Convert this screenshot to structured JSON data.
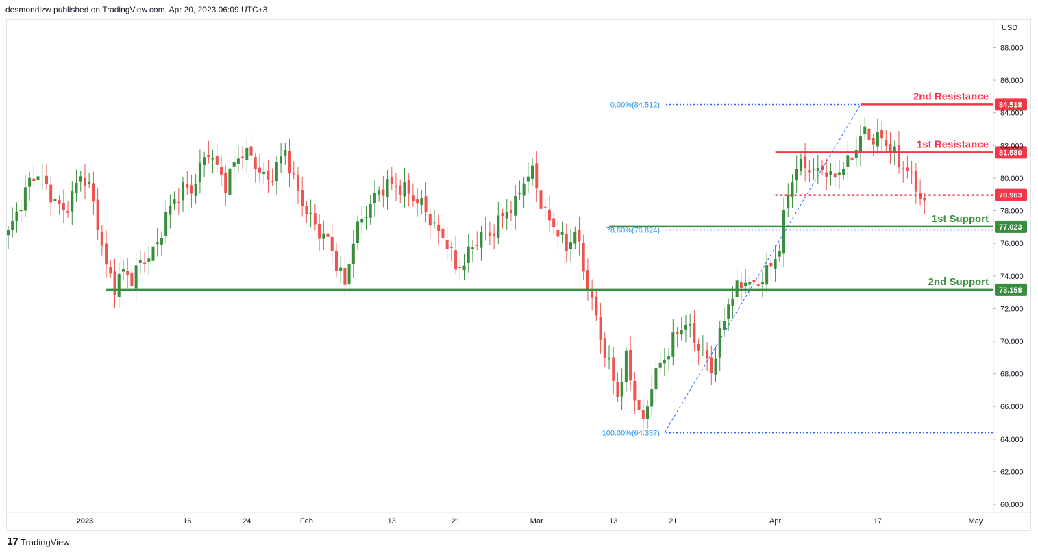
{
  "header": {
    "text": "desmondlzw published on TradingView.com, Apr 20, 2023 06:09 UTC+3"
  },
  "footer": {
    "brand": "TradingView",
    "logo_icon": "tradingview-logo-icon"
  },
  "colors": {
    "up": "#26a69a",
    "up_body": "#388e3c",
    "down": "#ef5350",
    "resistance": "#f23645",
    "support": "#388e3c",
    "fib": "#2962ff",
    "fib_text": "#2196f3"
  },
  "chart_data": {
    "type": "candlestick",
    "currency_label": "USD",
    "ylim": [
      59.5,
      89.7
    ],
    "y_ticks": [
      "88.000",
      "86.000",
      "84.000",
      "82.000",
      "80.000",
      "78.000",
      "76.000",
      "74.000",
      "72.000",
      "70.000",
      "68.000",
      "66.000",
      "64.000",
      "62.000",
      "60.000"
    ],
    "x_ticks": [
      "2023",
      "16",
      "24",
      "Feb",
      "13",
      "21",
      "Mar",
      "13",
      "21",
      "Apr",
      "17",
      "May"
    ],
    "levels": [
      {
        "label": "2nd Resistance",
        "value": 84.518,
        "badge": "84.518",
        "kind": "resistance",
        "style": "solid"
      },
      {
        "label": "1st Resistance",
        "value": 81.58,
        "badge": "81.580",
        "kind": "resistance",
        "style": "solid"
      },
      {
        "label": "",
        "value": 78.963,
        "badge": "78.963",
        "kind": "resistance",
        "style": "dotted"
      },
      {
        "label": "1st Support",
        "value": 77.023,
        "badge": "77.023",
        "kind": "support",
        "style": "solid"
      },
      {
        "label": "2nd Support",
        "value": 73.158,
        "badge": "73.158",
        "kind": "support",
        "style": "solid"
      }
    ],
    "fibonacci": [
      {
        "label": "0.00%(84.512)",
        "value": 84.512
      },
      {
        "label": "78.60%(76.824)",
        "value": 76.824
      },
      {
        "label": "100.00%(64.387)",
        "value": 64.387
      }
    ],
    "last_price": 78.3,
    "close_path": [
      [
        0,
        76.6
      ],
      [
        3,
        78.5
      ],
      [
        5,
        79.8
      ],
      [
        7,
        80.3
      ],
      [
        9,
        79.4
      ],
      [
        11,
        78.6
      ],
      [
        13,
        77.9
      ],
      [
        15,
        78.9
      ],
      [
        17,
        80.2
      ],
      [
        19,
        79.5
      ],
      [
        21,
        77.2
      ],
      [
        23,
        74.5
      ],
      [
        25,
        73.4
      ],
      [
        27,
        74.3
      ],
      [
        29,
        73.8
      ],
      [
        31,
        74.8
      ],
      [
        33,
        75.2
      ],
      [
        35,
        75.9
      ],
      [
        37,
        77.7
      ],
      [
        39,
        78.6
      ],
      [
        41,
        79.4
      ],
      [
        43,
        79.2
      ],
      [
        45,
        80.6
      ],
      [
        47,
        81.7
      ],
      [
        49,
        80.6
      ],
      [
        51,
        79.6
      ],
      [
        53,
        80.9
      ],
      [
        55,
        81.6
      ],
      [
        57,
        81.3
      ],
      [
        59,
        80.4
      ],
      [
        61,
        79.8
      ],
      [
        63,
        80.7
      ],
      [
        65,
        81.7
      ],
      [
        67,
        79.8
      ],
      [
        69,
        78.5
      ],
      [
        71,
        77.5
      ],
      [
        73,
        76.7
      ],
      [
        75,
        76.2
      ],
      [
        77,
        74.8
      ],
      [
        79,
        73.4
      ],
      [
        81,
        76.3
      ],
      [
        83,
        77.5
      ],
      [
        85,
        78.4
      ],
      [
        87,
        79.2
      ],
      [
        89,
        79.6
      ],
      [
        91,
        79.5
      ],
      [
        93,
        79.3
      ],
      [
        95,
        78.8
      ],
      [
        97,
        78.4
      ],
      [
        99,
        77.5
      ],
      [
        101,
        76.6
      ],
      [
        103,
        76.1
      ],
      [
        105,
        74.4
      ],
      [
        107,
        74.9
      ],
      [
        109,
        75.8
      ],
      [
        111,
        76.6
      ],
      [
        113,
        76.5
      ],
      [
        115,
        77.3
      ],
      [
        117,
        78.0
      ],
      [
        119,
        78.4
      ],
      [
        121,
        79.9
      ],
      [
        123,
        80.4
      ],
      [
        125,
        78.5
      ],
      [
        127,
        77.3
      ],
      [
        129,
        76.8
      ],
      [
        131,
        75.6
      ],
      [
        133,
        76.9
      ],
      [
        135,
        74.4
      ],
      [
        137,
        72.5
      ],
      [
        139,
        70.2
      ],
      [
        141,
        68.5
      ],
      [
        143,
        66.7
      ],
      [
        145,
        68.9
      ],
      [
        147,
        66.6
      ],
      [
        149,
        64.9
      ],
      [
        151,
        67.4
      ],
      [
        153,
        68.6
      ],
      [
        155,
        69.4
      ],
      [
        157,
        70.6
      ],
      [
        159,
        71.1
      ],
      [
        161,
        70.1
      ],
      [
        163,
        69.3
      ],
      [
        165,
        68.2
      ],
      [
        167,
        70.3
      ],
      [
        169,
        72.4
      ],
      [
        171,
        73.2
      ],
      [
        173,
        73.8
      ],
      [
        175,
        73.3
      ],
      [
        177,
        73.9
      ],
      [
        179,
        74.6
      ],
      [
        181,
        75.8
      ],
      [
        183,
        79.2
      ],
      [
        185,
        80.6
      ],
      [
        187,
        80.9
      ],
      [
        189,
        80.3
      ],
      [
        191,
        80.7
      ],
      [
        193,
        79.9
      ],
      [
        195,
        80.5
      ],
      [
        197,
        80.9
      ],
      [
        199,
        81.9
      ],
      [
        201,
        82.9
      ],
      [
        203,
        82.3
      ],
      [
        205,
        82.5
      ],
      [
        207,
        81.8
      ],
      [
        209,
        81.0
      ],
      [
        211,
        80.4
      ],
      [
        213,
        79.5
      ],
      [
        215,
        78.3
      ]
    ]
  }
}
